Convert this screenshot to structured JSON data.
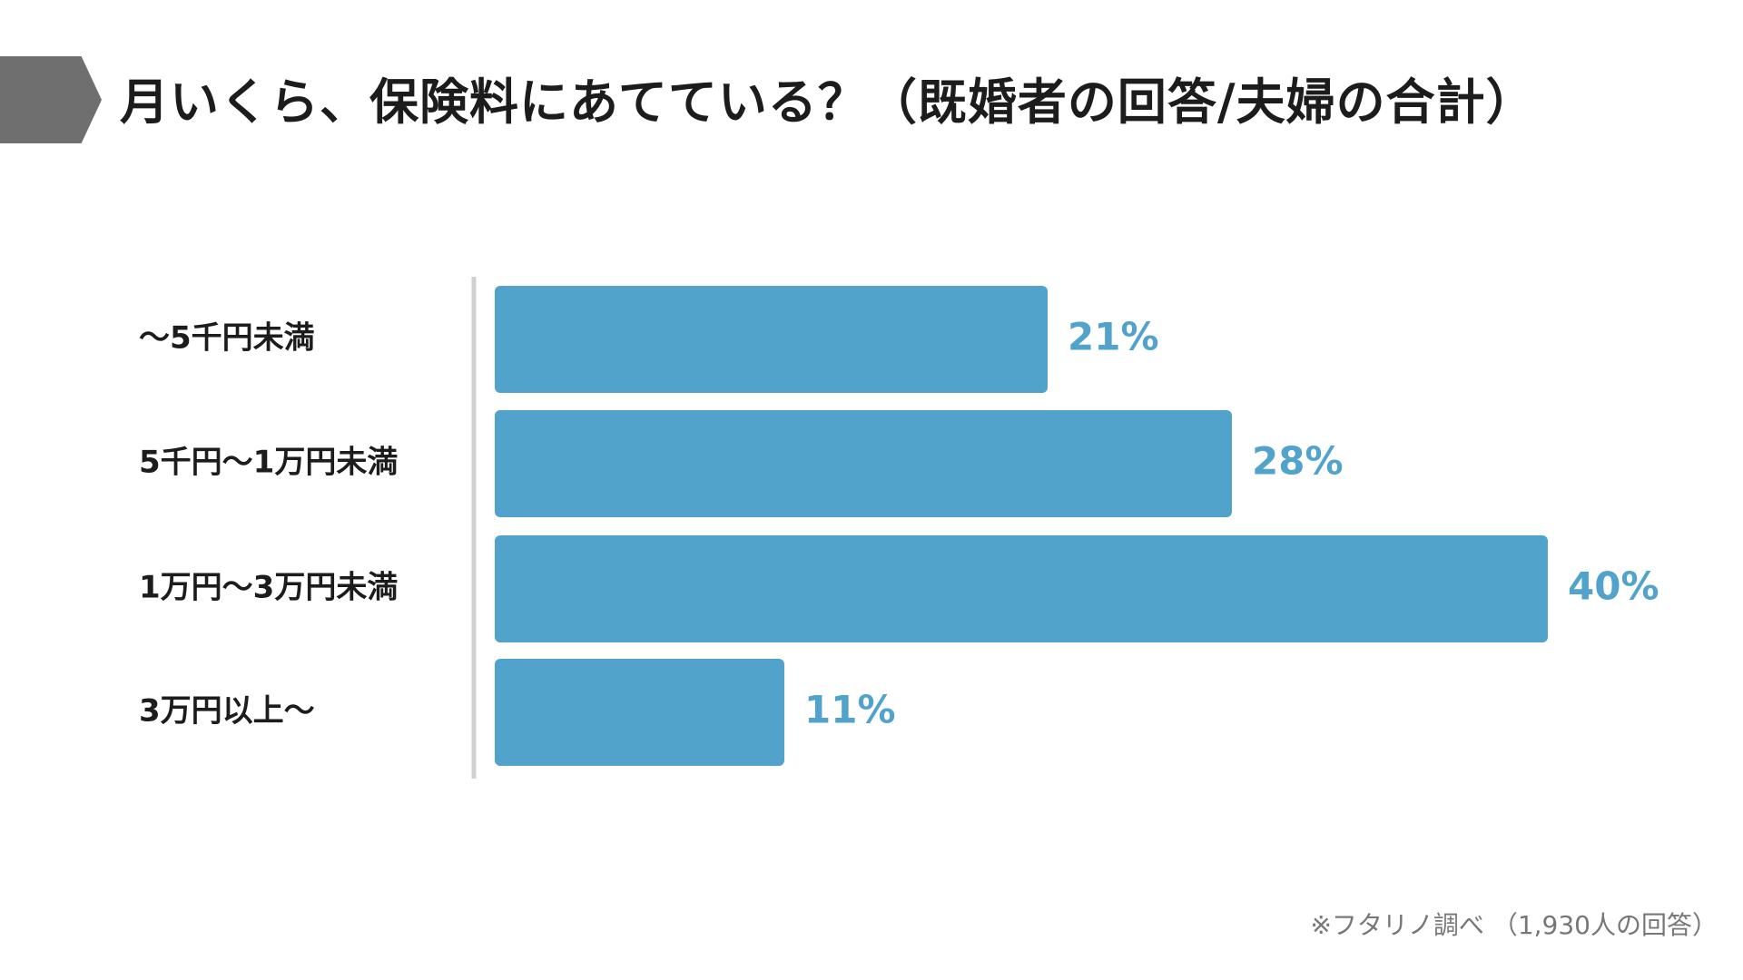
{
  "header": {
    "title": "月いくら、保険料にあてている？（既婚者の回答/夫婦の合計）"
  },
  "chart_data": {
    "type": "bar",
    "orientation": "horizontal",
    "categories": [
      "〜5千円未満",
      "5千円〜1万円未満",
      "1万円〜3万円未満",
      "3万円以上〜"
    ],
    "values": [
      21,
      28,
      40,
      11
    ],
    "value_labels": [
      "21%",
      "28%",
      "40%",
      "11%"
    ],
    "unit": "%",
    "xlim": [
      0,
      40
    ],
    "grid": false,
    "legend": "none",
    "bar_color": "#52a3cc",
    "label_color": "#52a3cc",
    "axis_color": "#d0d0d0",
    "category_color": "#1c1c1c"
  },
  "footer": {
    "note": "※フタリノ調べ （1,930人の回答）"
  }
}
